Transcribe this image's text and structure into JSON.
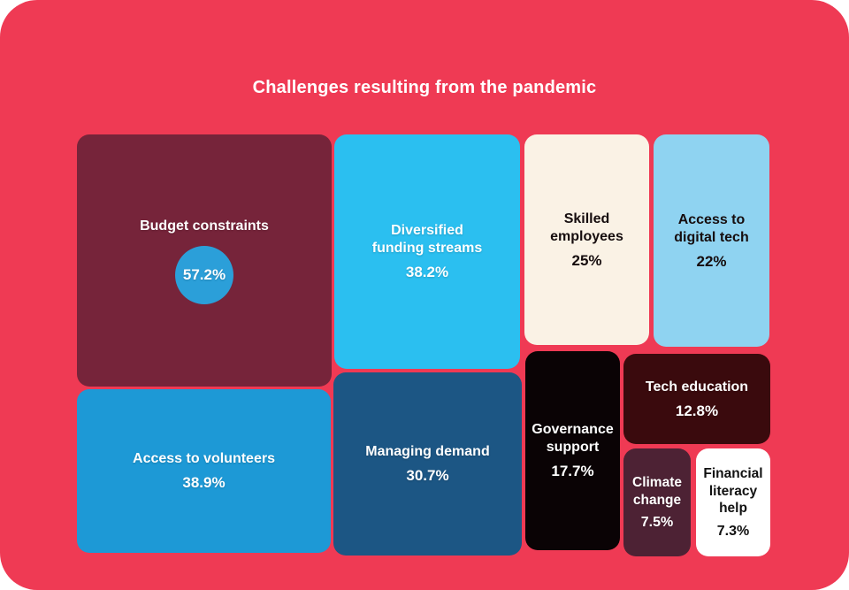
{
  "canvas": {
    "background_color": "#EF3A54",
    "page_background": "#FFFFFF"
  },
  "header": {
    "title": "Challenges resulting from the pandemic",
    "title_color": "#FFFFFF"
  },
  "chart_data": {
    "type": "treemap",
    "title": "Challenges resulting from the pandemic",
    "unit": "%",
    "items": [
      {
        "label": "Budget constraints",
        "lines": [
          "Budget constraints"
        ],
        "value": 57.2,
        "display_value": "57.2%",
        "tile_color": "#76243A",
        "text_color": "#FFFFFF",
        "badge_color": "#2B9FD9",
        "value_in_badge": true
      },
      {
        "label": "Access to volunteers",
        "lines": [
          "Access to volunteers"
        ],
        "value": 38.9,
        "display_value": "38.9%",
        "tile_color": "#1D99D6",
        "text_color": "#FFFFFF"
      },
      {
        "label": "Diversified funding streams",
        "lines": [
          "Diversified",
          "funding streams"
        ],
        "value": 38.2,
        "display_value": "38.2%",
        "tile_color": "#2BBFF0",
        "text_color": "#FFFFFF"
      },
      {
        "label": "Managing demand",
        "lines": [
          "Managing demand"
        ],
        "value": 30.7,
        "display_value": "30.7%",
        "tile_color": "#1C5684",
        "text_color": "#FFFFFF"
      },
      {
        "label": "Skilled employees",
        "lines": [
          "Skilled",
          "employees"
        ],
        "value": 25,
        "display_value": "25%",
        "tile_color": "#FAF2E5",
        "text_color": "#160D0E"
      },
      {
        "label": "Access to digital tech",
        "lines": [
          "Access to",
          "digital tech"
        ],
        "value": 22,
        "display_value": "22%",
        "tile_color": "#8FD3F1",
        "text_color": "#160D0E"
      },
      {
        "label": "Governance support",
        "lines": [
          "Governance",
          "support"
        ],
        "value": 17.7,
        "display_value": "17.7%",
        "tile_color": "#0A0305",
        "text_color": "#FFFFFF"
      },
      {
        "label": "Tech education",
        "lines": [
          "Tech education"
        ],
        "value": 12.8,
        "display_value": "12.8%",
        "tile_color": "#3A0A0D",
        "text_color": "#FFFFFF"
      },
      {
        "label": "Climate change",
        "lines": [
          "Climate",
          "change"
        ],
        "value": 7.5,
        "display_value": "7.5%",
        "tile_color": "#4D2234",
        "text_color": "#FFFFFF"
      },
      {
        "label": "Financial literacy help",
        "lines": [
          "Financial",
          "literacy",
          "help"
        ],
        "value": 7.3,
        "display_value": "7.3%",
        "tile_color": "#FFFFFF",
        "text_color": "#111111"
      }
    ]
  }
}
